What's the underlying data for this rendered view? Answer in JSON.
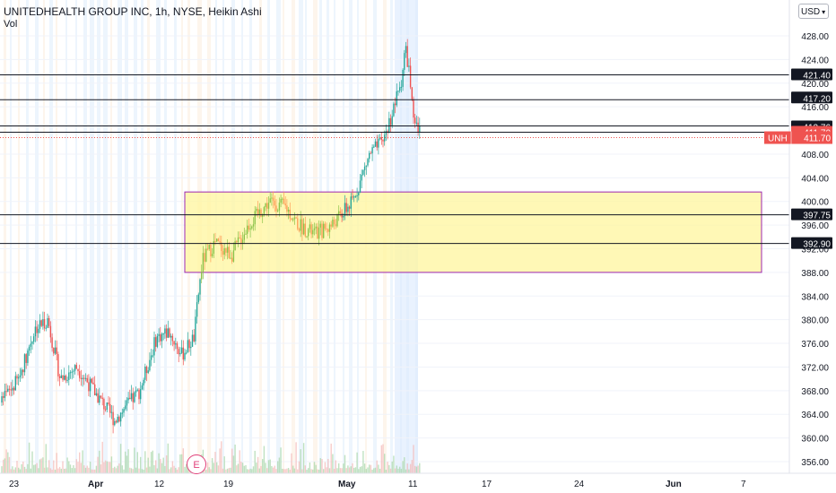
{
  "legend": {
    "title": "UNITEDHEALTH GROUP INC, 1h, NYSE, Heikin Ashi",
    "volume": "Vol"
  },
  "currency_button": {
    "label": "USD",
    "icon": "chevron-down-icon"
  },
  "earnings_marker": {
    "label": "E"
  },
  "colors": {
    "up": "#26a69a",
    "down": "#ef5350",
    "zone_fill": "#fff59d",
    "zone_border": "#9c27b0",
    "level_line": "#131722",
    "price_tag": "#ef5350",
    "session_shade": "#e3f2fd"
  },
  "chart_data": {
    "type": "candlestick",
    "title": "UNITEDHEALTH GROUP INC, 1h, NYSE, Heikin Ashi",
    "symbol": "UNH",
    "ylim": [
      354,
      430
    ],
    "y_ticks": [
      "428.00",
      "424.00",
      "420.00",
      "416.00",
      "408.00",
      "404.00",
      "400.00",
      "396.00",
      "392.00",
      "388.00",
      "384.00",
      "380.00",
      "376.00",
      "372.00",
      "368.00",
      "364.00",
      "360.00",
      "356.00"
    ],
    "x_ticks": [
      "23",
      "Apr",
      "12",
      "19",
      "May",
      "11",
      "17",
      "24",
      "Jun",
      "7"
    ],
    "horizontal_levels": [
      "421.40",
      "417.20",
      "412.76",
      "411.70",
      "397.75",
      "392.90"
    ],
    "last_price": {
      "label": "UNH",
      "value": "411.70"
    },
    "zone": {
      "from": 388,
      "to": 401.6
    },
    "price_path": [
      [
        0,
        366
      ],
      [
        0.04,
        370
      ],
      [
        0.08,
        378.5
      ],
      [
        0.11,
        380
      ],
      [
        0.14,
        370
      ],
      [
        0.18,
        372
      ],
      [
        0.24,
        366
      ],
      [
        0.27,
        363
      ],
      [
        0.33,
        368
      ],
      [
        0.37,
        377
      ],
      [
        0.4,
        378
      ],
      [
        0.43,
        374
      ],
      [
        0.46,
        377
      ],
      [
        0.47,
        384
      ],
      [
        0.48,
        390
      ],
      [
        0.51,
        393
      ],
      [
        0.55,
        391
      ],
      [
        0.59,
        396
      ],
      [
        0.64,
        400
      ],
      [
        0.68,
        399
      ],
      [
        0.71,
        396
      ],
      [
        0.75,
        394.5
      ],
      [
        0.79,
        396
      ],
      [
        0.84,
        400
      ],
      [
        0.88,
        408
      ],
      [
        0.91,
        410
      ],
      [
        0.93,
        414
      ],
      [
        0.955,
        420
      ],
      [
        0.965,
        426
      ],
      [
        0.975,
        422
      ],
      [
        0.985,
        413
      ],
      [
        1.0,
        411.7
      ]
    ]
  }
}
